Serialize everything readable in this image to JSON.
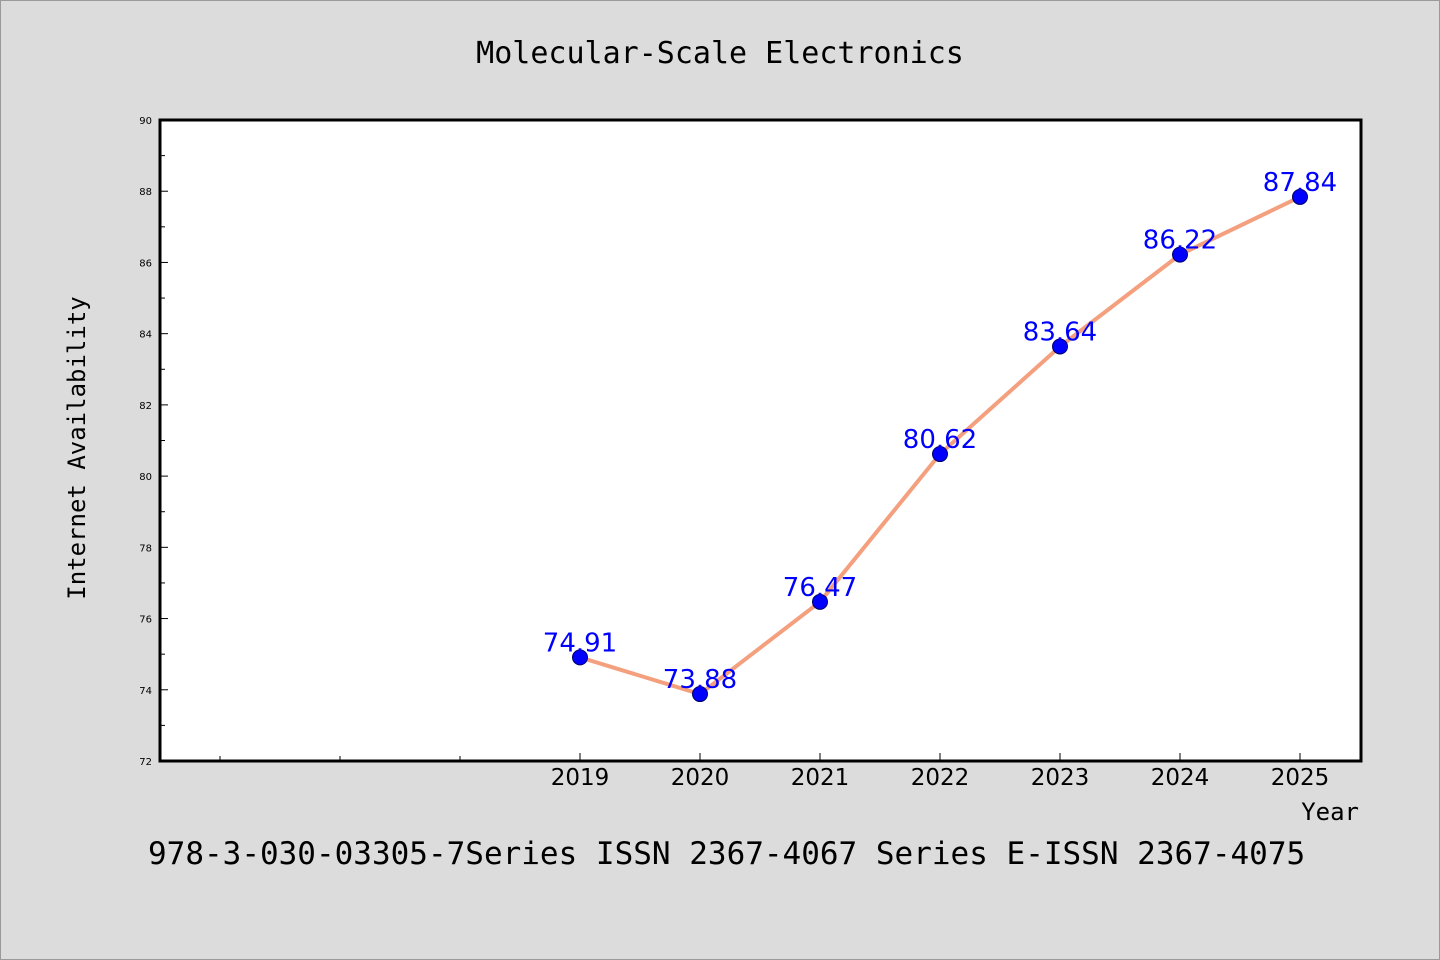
{
  "chart_data": {
    "type": "line",
    "title": "Molecular-Scale Electronics",
    "xlabel": "Year",
    "ylabel": "Internet Availability",
    "x": [
      "2019",
      "2020",
      "2021",
      "2022",
      "2023",
      "2024",
      "2025"
    ],
    "series": [
      {
        "values": [
          74.91,
          73.88,
          76.47,
          80.62,
          83.64,
          86.22,
          87.84
        ]
      }
    ],
    "data_labels": [
      "74.91",
      "73.88",
      "76.47",
      "80.62",
      "83.64",
      "86.22",
      "87.84"
    ],
    "ylim": [
      72,
      90
    ],
    "yticks": [
      72,
      74,
      76,
      78,
      80,
      82,
      84,
      86,
      88,
      90
    ],
    "grid": false,
    "line_color": "#f4a07e",
    "marker_color": "#0000ff",
    "label_color": "#0000ff"
  },
  "footer_text": "978-3-030-03305-7Series ISSN 2367-4067 Series E-ISSN 2367-4075"
}
